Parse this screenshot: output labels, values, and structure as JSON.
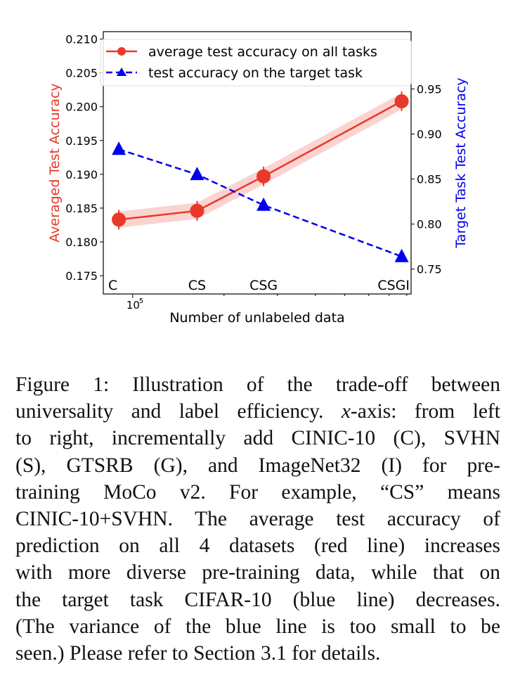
{
  "chart_data": {
    "type": "line",
    "xlabel": "Number of unlabeled data",
    "xscale": "log",
    "xlim": [
      80000,
      827000
    ],
    "x_tick_labels": [
      {
        "value": 100000,
        "base": "10",
        "exp": "5"
      }
    ],
    "x": [
      90000,
      163000,
      270000,
      770000
    ],
    "point_labels": [
      "C",
      "CS",
      "CSG",
      "CSGI"
    ],
    "ylabel_left": "Averaged Test Accuracy",
    "ylabel_right": "Target Task Test Accuracy",
    "ylim_left": [
      0.1723,
      0.2111
    ],
    "ylim_right": [
      0.7224,
      1.0136
    ],
    "yticks_left": [
      "0.175",
      "0.180",
      "0.185",
      "0.190",
      "0.195",
      "0.200",
      "0.205",
      "0.210"
    ],
    "yticks_right": [
      "0.75",
      "0.80",
      "0.85",
      "0.90",
      "0.95"
    ],
    "grid": false,
    "legend_placement": "top",
    "series": [
      {
        "name": "average test accuracy on all tasks",
        "axis": "left",
        "color": "#e8392a",
        "marker": "circle",
        "linestyle": "solid",
        "values": [
          0.1833,
          0.1846,
          0.1897,
          0.2008
        ],
        "band": [
          0.0012,
          0.0012,
          0.0012,
          0.0012
        ]
      },
      {
        "name": "test accuracy on the target task",
        "axis": "right",
        "color": "#0000ee",
        "marker": "triangle",
        "linestyle": "dashed",
        "values": [
          0.883,
          0.855,
          0.821,
          0.764
        ]
      }
    ]
  },
  "caption": {
    "lines": [
      "Figure 1:  Illustration of the trade-off between",
      "universality and label efficiency.",
      "to right, incrementally add CINIC-10 (C), SVHN",
      "(S), GTSRB (G), and ImageNet32 (I) for pre-",
      "training MoCo v2.  For example, “CS” means",
      "CINIC-10+SVHN. The average test accuracy of",
      "prediction on all 4 datasets (red line) increases",
      "with more diverse pre-training data, while that on",
      "the target task CIFAR-10 (blue line) decreases.",
      "(The variance of the blue line is too small to be",
      "seen.) Please refer to Section 3.1 for details."
    ],
    "line2_italic": "x",
    "line2_tail": "-axis: from left"
  }
}
